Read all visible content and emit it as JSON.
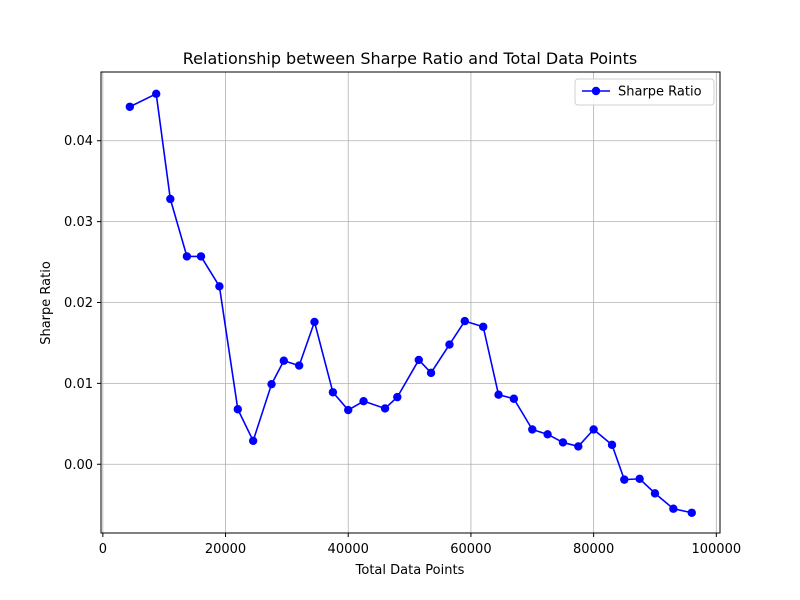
{
  "chart_data": {
    "type": "line",
    "title": "Relationship between Sharpe Ratio and Total Data Points",
    "xlabel": "Total Data Points",
    "ylabel": "Sharpe Ratio",
    "xlim": [
      -300,
      100600
    ],
    "ylim": [
      -0.0085,
      0.0485
    ],
    "x_ticks": [
      0,
      20000,
      40000,
      60000,
      80000,
      100000
    ],
    "x_tick_labels": [
      "0",
      "20000",
      "40000",
      "60000",
      "80000",
      "100000"
    ],
    "y_ticks": [
      0.0,
      0.01,
      0.02,
      0.03,
      0.04
    ],
    "y_tick_labels": [
      "0.00",
      "0.01",
      "0.02",
      "0.03",
      "0.04"
    ],
    "grid": true,
    "legend_position": "upper-right",
    "colors": {
      "series": "#0000ff",
      "grid": "#b0b0b0",
      "axes": "#000000"
    },
    "series": [
      {
        "name": "Sharpe Ratio",
        "marker": "circle",
        "x": [
          4400,
          8700,
          11000,
          13700,
          16000,
          19000,
          22000,
          24500,
          27500,
          29500,
          32000,
          34500,
          37500,
          40000,
          42500,
          46000,
          48000,
          51500,
          53500,
          56500,
          59000,
          62000,
          64500,
          67000,
          70000,
          72500,
          75000,
          77500,
          80000,
          83000,
          85000,
          87500,
          90000,
          93000,
          96000
        ],
        "y": [
          0.0442,
          0.0458,
          0.0328,
          0.0257,
          0.0257,
          0.022,
          0.0068,
          0.0029,
          0.0099,
          0.0128,
          0.0122,
          0.0176,
          0.0089,
          0.0067,
          0.0078,
          0.0069,
          0.0083,
          0.0129,
          0.0113,
          0.0148,
          0.0177,
          0.017,
          0.0086,
          0.0081,
          0.0043,
          0.0037,
          0.0027,
          0.0022,
          0.0043,
          0.0024,
          -0.0019,
          -0.0018,
          -0.0036,
          -0.0055,
          -0.006
        ]
      }
    ]
  }
}
